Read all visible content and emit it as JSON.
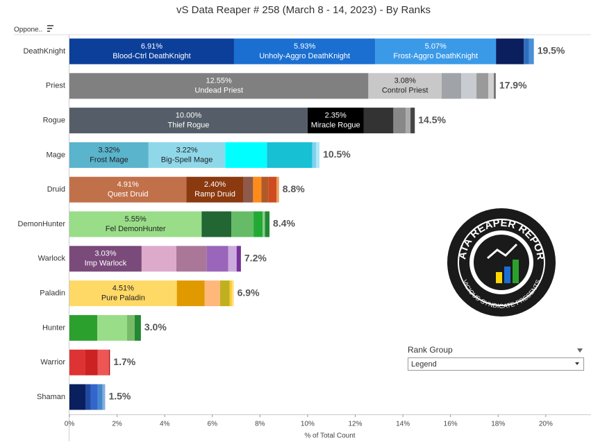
{
  "chart_data": {
    "type": "stacked-hbar",
    "title": "vS Data Reaper #  258 (March 8 - 14, 2023) - By Ranks",
    "row_header": "Oppone..",
    "x_label": "% of Total Count",
    "xlim": [
      0,
      21.9
    ],
    "xticks": [
      {
        "value": 0,
        "label": "0%"
      },
      {
        "value": 2,
        "label": "2%"
      },
      {
        "value": 4,
        "label": "4%"
      },
      {
        "value": 6,
        "label": "6%"
      },
      {
        "value": 8,
        "label": "8%"
      },
      {
        "value": 10,
        "label": "10%"
      },
      {
        "value": 12,
        "label": "12%"
      },
      {
        "value": 14,
        "label": "14%"
      },
      {
        "value": 16,
        "label": "16%"
      },
      {
        "value": 18,
        "label": "18%"
      },
      {
        "value": 20,
        "label": "20%"
      }
    ],
    "bars": [
      {
        "class": "DeathKnight",
        "total": 19.5,
        "total_label": "19.5%",
        "segments": [
          {
            "name": "Blood-Ctrl DeathKnight",
            "value": 6.91,
            "value_label": "6.91%",
            "color": "#0b3f9a"
          },
          {
            "name": "Unholy-Aggro DeathKnight",
            "value": 5.93,
            "value_label": "5.93%",
            "color": "#1a6fd1"
          },
          {
            "name": "Frost-Aggro DeathKnight",
            "value": 5.07,
            "value_label": "5.07%",
            "color": "#3b9ae8"
          },
          {
            "value": 1.17,
            "color": "#0b1f5e"
          },
          {
            "value": 0.22,
            "color": "#2f6ebf"
          },
          {
            "value": 0.2,
            "color": "#4a90d9"
          }
        ]
      },
      {
        "class": "Priest",
        "total": 17.9,
        "total_label": "17.9%",
        "segments": [
          {
            "name": "Undead Priest",
            "value": 12.55,
            "value_label": "12.55%",
            "color": "#808080"
          },
          {
            "name": "Control Priest",
            "value": 3.08,
            "value_label": "3.08%",
            "color": "#c8c8c8"
          },
          {
            "value": 0.82,
            "color": "#a0a4a8"
          },
          {
            "value": 0.64,
            "color": "#c8ccd0"
          },
          {
            "value": 0.5,
            "color": "#9a9a9a"
          },
          {
            "value": 0.23,
            "color": "#d0d0d0"
          },
          {
            "value": 0.08,
            "color": "#707070"
          }
        ]
      },
      {
        "class": "Rogue",
        "total": 14.5,
        "total_label": "14.5%",
        "segments": [
          {
            "name": "Thief Rogue",
            "value": 10.0,
            "value_label": "10.00%",
            "color": "#555e68"
          },
          {
            "name": "Miracle Rogue",
            "value": 2.35,
            "value_label": "2.35%",
            "color": "#000000"
          },
          {
            "value": 1.25,
            "color": "#333333"
          },
          {
            "value": 0.52,
            "color": "#888888"
          },
          {
            "value": 0.2,
            "color": "#aaaaaa"
          },
          {
            "value": 0.18,
            "color": "#444444"
          }
        ]
      },
      {
        "class": "Mage",
        "total": 10.5,
        "total_label": "10.5%",
        "segments": [
          {
            "name": "Frost Mage",
            "value": 3.32,
            "value_label": "3.32%",
            "color": "#5ab4cc"
          },
          {
            "name": "Big-Spell Mage",
            "value": 3.22,
            "value_label": "3.22%",
            "color": "#8fd8ea"
          },
          {
            "value": 1.75,
            "color": "#00ffff"
          },
          {
            "value": 1.9,
            "color": "#18c0d4"
          },
          {
            "value": 0.17,
            "color": "#7fd0f0"
          },
          {
            "value": 0.14,
            "color": "#b0e8f8"
          }
        ]
      },
      {
        "class": "Druid",
        "total": 8.8,
        "total_label": "8.8%",
        "segments": [
          {
            "name": "Quest Druid",
            "value": 4.91,
            "value_label": "4.91%",
            "color": "#c1714a"
          },
          {
            "name": "Ramp Druid",
            "value": 2.4,
            "value_label": "2.40%",
            "color": "#8b3a10"
          },
          {
            "value": 0.4,
            "color": "#8e5a4a"
          },
          {
            "value": 0.35,
            "color": "#ff8c1a"
          },
          {
            "value": 0.3,
            "color": "#b05a2a"
          },
          {
            "value": 0.33,
            "color": "#d04a20"
          },
          {
            "value": 0.11,
            "color": "#e8a060"
          }
        ]
      },
      {
        "class": "DemonHunter",
        "total": 8.4,
        "total_label": "8.4%",
        "segments": [
          {
            "name": "Fel DemonHunter",
            "value": 5.55,
            "value_label": "5.55%",
            "color": "#99dd88"
          },
          {
            "value": 1.25,
            "color": "#226633"
          },
          {
            "value": 0.93,
            "color": "#66bb66"
          },
          {
            "value": 0.38,
            "color": "#22aa33"
          },
          {
            "value": 0.1,
            "color": "#88cc88"
          },
          {
            "value": 0.19,
            "color": "#228833"
          }
        ]
      },
      {
        "class": "Warlock",
        "total": 7.2,
        "total_label": "7.2%",
        "segments": [
          {
            "name": "Imp Warlock",
            "value": 3.03,
            "value_label": "3.03%",
            "color": "#7a4a7a"
          },
          {
            "value": 1.46,
            "color": "#ddaacc"
          },
          {
            "value": 1.28,
            "color": "#aa7799"
          },
          {
            "value": 0.9,
            "color": "#9966bb"
          },
          {
            "value": 0.35,
            "color": "#ccaadd"
          },
          {
            "value": 0.18,
            "color": "#773399"
          }
        ]
      },
      {
        "class": "Paladin",
        "total": 6.9,
        "total_label": "6.9%",
        "segments": [
          {
            "name": "Pure Paladin",
            "value": 4.51,
            "value_label": "4.51%",
            "color": "#ffd966"
          },
          {
            "value": 1.17,
            "color": "#e09a00"
          },
          {
            "value": 0.64,
            "color": "#ffb87a"
          },
          {
            "value": 0.41,
            "color": "#c0b020"
          },
          {
            "value": 0.1,
            "color": "#ffcc33"
          },
          {
            "value": 0.07,
            "color": "#ffe080"
          }
        ]
      },
      {
        "class": "Hunter",
        "total": 3.0,
        "total_label": "3.0%",
        "segments": [
          {
            "value": 1.17,
            "color": "#2ca02c"
          },
          {
            "value": 1.25,
            "color": "#99dd88"
          },
          {
            "value": 0.32,
            "color": "#77bb66"
          },
          {
            "value": 0.26,
            "color": "#228833"
          }
        ]
      },
      {
        "class": "Warrior",
        "total": 1.7,
        "total_label": "1.7%",
        "segments": [
          {
            "value": 0.67,
            "color": "#dd3333"
          },
          {
            "value": 0.52,
            "color": "#cc2222"
          },
          {
            "value": 0.47,
            "color": "#ee5555"
          },
          {
            "value": 0.04,
            "color": "#aa1111"
          }
        ]
      },
      {
        "class": "Shaman",
        "total": 1.5,
        "total_label": "1.5%",
        "segments": [
          {
            "value": 0.67,
            "color": "#0a1f5e"
          },
          {
            "value": 0.23,
            "color": "#1f4aa0"
          },
          {
            "value": 0.29,
            "color": "#3366cc"
          },
          {
            "value": 0.2,
            "color": "#4488cc"
          },
          {
            "value": 0.11,
            "color": "#88aadd"
          }
        ]
      }
    ],
    "legend": {
      "title": "Rank Group",
      "selection": "Legend"
    },
    "logo": {
      "title": "DATA REAPER REPORT",
      "subtitle": "VICIOUS SYNDICATE PRESENTS"
    }
  }
}
